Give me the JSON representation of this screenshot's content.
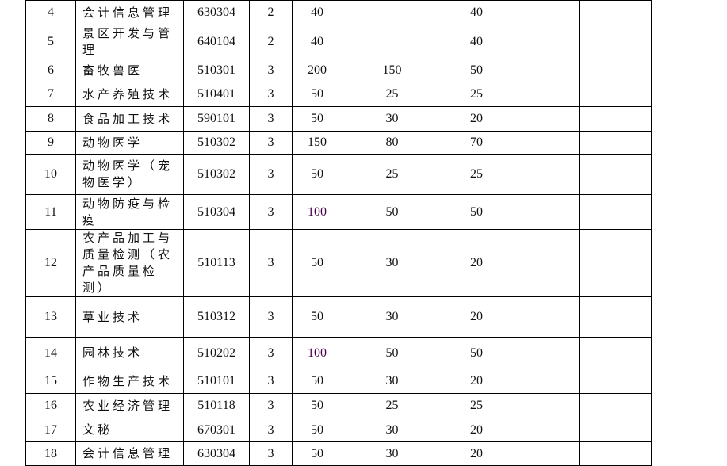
{
  "rows": [
    {
      "no": "4",
      "name": "会计信息管理",
      "code": "630304",
      "years": "2",
      "total": "40",
      "a": "",
      "b": "40",
      "c": "",
      "d": ""
    },
    {
      "no": "5",
      "name": "景区开发与管理",
      "code": "640104",
      "years": "2",
      "total": "40",
      "a": "",
      "b": "40",
      "c": "",
      "d": ""
    },
    {
      "no": "6",
      "name": "畜牧兽医",
      "code": "510301",
      "years": "3",
      "total": "200",
      "a": "150",
      "b": "50",
      "c": "",
      "d": ""
    },
    {
      "no": "7",
      "name": "水产养殖技术",
      "code": "510401",
      "years": "3",
      "total": "50",
      "a": "25",
      "b": "25",
      "c": "",
      "d": ""
    },
    {
      "no": "8",
      "name": "食品加工技术",
      "code": "590101",
      "years": "3",
      "total": "50",
      "a": "30",
      "b": "20",
      "c": "",
      "d": ""
    },
    {
      "no": "9",
      "name": "动物医学",
      "code": "510302",
      "years": "3",
      "total": "150",
      "a": "80",
      "b": "70",
      "c": "",
      "d": ""
    },
    {
      "no": "10",
      "name": "动物医学（宠物医学）",
      "code": "510302",
      "years": "3",
      "total": "50",
      "a": "25",
      "b": "25",
      "c": "",
      "d": ""
    },
    {
      "no": "11",
      "name": "动物防疫与检疫",
      "code": "510304",
      "years": "3",
      "total": "100",
      "a": "50",
      "b": "50",
      "c": "",
      "d": ""
    },
    {
      "no": "12",
      "name": "农产品加工与质量检测（农产品质量检测）",
      "code": "510113",
      "years": "3",
      "total": "50",
      "a": "30",
      "b": "20",
      "c": "",
      "d": ""
    },
    {
      "no": "13",
      "name": "草业技术",
      "code": "510312",
      "years": "3",
      "total": "50",
      "a": "30",
      "b": "20",
      "c": "",
      "d": ""
    },
    {
      "no": "14",
      "name": "园林技术",
      "code": "510202",
      "years": "3",
      "total": "100",
      "a": "50",
      "b": "50",
      "c": "",
      "d": ""
    },
    {
      "no": "15",
      "name": "作物生产技术",
      "code": "510101",
      "years": "3",
      "total": "50",
      "a": "30",
      "b": "20",
      "c": "",
      "d": ""
    },
    {
      "no": "16",
      "name": "农业经济管理",
      "code": "510118",
      "years": "3",
      "total": "50",
      "a": "25",
      "b": "25",
      "c": "",
      "d": ""
    },
    {
      "no": "17",
      "name": "文秘",
      "code": "670301",
      "years": "3",
      "total": "50",
      "a": "30",
      "b": "20",
      "c": "",
      "d": ""
    },
    {
      "no": "18",
      "name": "会计信息管理",
      "code": "630304",
      "years": "3",
      "total": "50",
      "a": "30",
      "b": "20",
      "c": "",
      "d": ""
    }
  ]
}
